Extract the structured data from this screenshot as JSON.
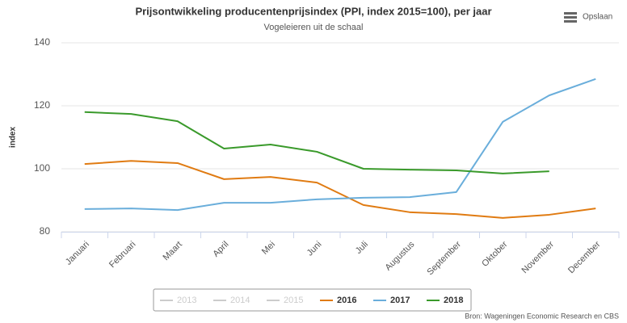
{
  "chart_data": {
    "type": "line",
    "title": "Prijsontwikkeling producentenprijsindex (PPI, index 2015=100), per jaar",
    "subtitle": "Vogeleieren uit de schaal",
    "y_label": "index",
    "menu_label": "Opslaan",
    "source": "Bron: Wageningen Economic Research en CBS",
    "categories": [
      "Januari",
      "Februari",
      "Maart",
      "April",
      "Mei",
      "Juni",
      "Juli",
      "Augustus",
      "September",
      "Oktober",
      "November",
      "December"
    ],
    "ylim": [
      80,
      140
    ],
    "yticks": [
      80,
      100,
      120,
      140
    ],
    "grid": true,
    "series": [
      {
        "name": "2013",
        "color": "#cccccc",
        "visible": false,
        "values": [
          null,
          null,
          null,
          null,
          null,
          null,
          null,
          null,
          null,
          null,
          null,
          null
        ]
      },
      {
        "name": "2014",
        "color": "#cccccc",
        "visible": false,
        "values": [
          null,
          null,
          null,
          null,
          null,
          null,
          null,
          null,
          null,
          null,
          null,
          null
        ]
      },
      {
        "name": "2015",
        "color": "#cccccc",
        "visible": false,
        "values": [
          null,
          null,
          null,
          null,
          null,
          null,
          null,
          null,
          null,
          null,
          null,
          null
        ]
      },
      {
        "name": "2016",
        "color": "#e07b12",
        "visible": true,
        "values": [
          101.5,
          102.5,
          101.8,
          96.7,
          97.4,
          95.6,
          88.5,
          86.2,
          85.6,
          84.4,
          85.4,
          87.4
        ]
      },
      {
        "name": "2017",
        "color": "#6aaedb",
        "visible": true,
        "values": [
          87.2,
          87.4,
          86.9,
          89.2,
          89.2,
          90.3,
          90.8,
          91.0,
          92.6,
          114.9,
          123.3,
          128.5
        ]
      },
      {
        "name": "2018",
        "color": "#3a9a2b",
        "visible": true,
        "values": [
          118.0,
          117.4,
          115.1,
          106.4,
          107.7,
          105.4,
          100.0,
          99.7,
          99.5,
          98.5,
          99.2,
          null
        ]
      }
    ]
  }
}
